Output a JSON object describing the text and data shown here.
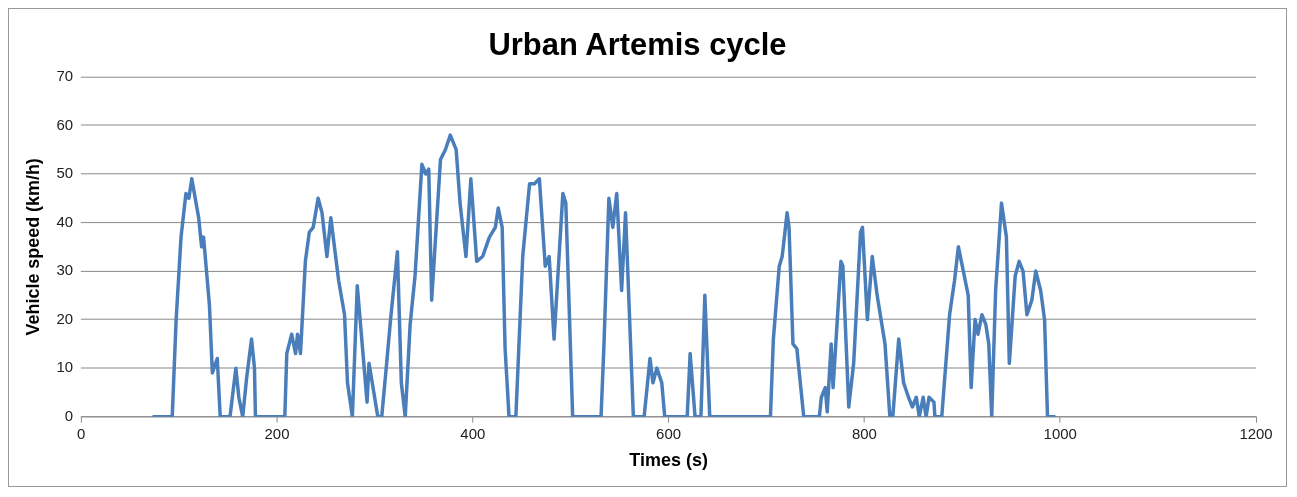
{
  "chart_data": {
    "type": "line",
    "title": "Urban Artemis cycle",
    "xlabel": "Times (s)",
    "ylabel": "Vehicle speed (km/h)",
    "xlim": [
      0,
      1200
    ],
    "xticks": [
      0,
      200,
      400,
      600,
      800,
      1000,
      1200
    ],
    "ylim": [
      0,
      70
    ],
    "yticks": [
      0,
      10,
      20,
      30,
      40,
      50,
      60,
      70
    ],
    "grid": "y",
    "legend": false,
    "marker": "none",
    "line_style": "solid",
    "series": [
      {
        "color": "#4a7ebb",
        "x": [
          74,
          93,
          97,
          102,
          107,
          110,
          113,
          120,
          123,
          125,
          131,
          134,
          139,
          142,
          152,
          158,
          161,
          165,
          169,
          174,
          177,
          178,
          208,
          210,
          215,
          219,
          221,
          224,
          229,
          233,
          237,
          242,
          246,
          251,
          255,
          263,
          269,
          272,
          277,
          282,
          292,
          294,
          303,
          307,
          312,
          316,
          323,
          327,
          331,
          336,
          341,
          348,
          352,
          355,
          358,
          367,
          372,
          377,
          383,
          387,
          393,
          398,
          404,
          410,
          417,
          423,
          426,
          430,
          433,
          437,
          444,
          451,
          458,
          463,
          468,
          474,
          478,
          483,
          492,
          495,
          502,
          531,
          534,
          539,
          543,
          547,
          552,
          556,
          564,
          575,
          581,
          584,
          588,
          593,
          596,
          619,
          622,
          627,
          633,
          637,
          642,
          704,
          707,
          713,
          716,
          721,
          723,
          727,
          731,
          738,
          754,
          756,
          760,
          762,
          766,
          768,
          776,
          778,
          784,
          789,
          796,
          798,
          803,
          808,
          813,
          821,
          826,
          829,
          835,
          840,
          845,
          849,
          853,
          856,
          860,
          863,
          866,
          871,
          872,
          879,
          887,
          892,
          896,
          903,
          906,
          909,
          913,
          916,
          920,
          924,
          927,
          930,
          934,
          940,
          945,
          948,
          954,
          958,
          962,
          966,
          971,
          975,
          980,
          984,
          987,
          994
        ],
        "values": [
          0,
          0,
          20,
          37,
          46,
          45,
          49,
          41,
          35,
          37,
          23,
          9,
          12,
          0,
          0,
          10,
          4,
          0,
          8,
          16,
          10,
          0,
          0,
          13,
          17,
          13,
          17,
          13,
          32,
          38,
          39,
          45,
          42,
          33,
          41,
          28,
          21,
          7,
          0,
          27,
          3,
          11,
          0,
          0,
          11,
          20,
          34,
          7,
          0,
          19,
          29,
          52,
          50,
          51,
          24,
          53,
          55,
          58,
          55,
          44,
          33,
          49,
          32,
          33,
          37,
          39,
          43,
          39,
          14,
          0,
          0,
          33,
          48,
          48,
          49,
          31,
          33,
          16,
          46,
          44,
          0,
          0,
          15,
          45,
          39,
          46,
          26,
          42,
          0,
          0,
          12,
          7,
          10,
          7,
          0,
          0,
          13,
          0,
          0,
          25,
          0,
          0,
          16,
          31,
          33,
          42,
          39,
          15,
          14,
          0,
          0,
          4,
          6,
          1,
          15,
          6,
          32,
          31,
          2,
          11,
          38,
          39,
          20,
          33,
          25,
          15,
          0,
          0,
          16,
          7,
          4,
          2,
          4,
          0,
          4,
          0,
          4,
          3,
          0,
          0,
          21,
          28,
          35,
          28,
          25,
          6,
          20,
          17,
          21,
          19,
          15,
          0,
          26,
          44,
          37,
          11,
          29,
          32,
          30,
          21,
          24,
          30,
          26,
          20,
          0,
          0
        ]
      }
    ]
  }
}
